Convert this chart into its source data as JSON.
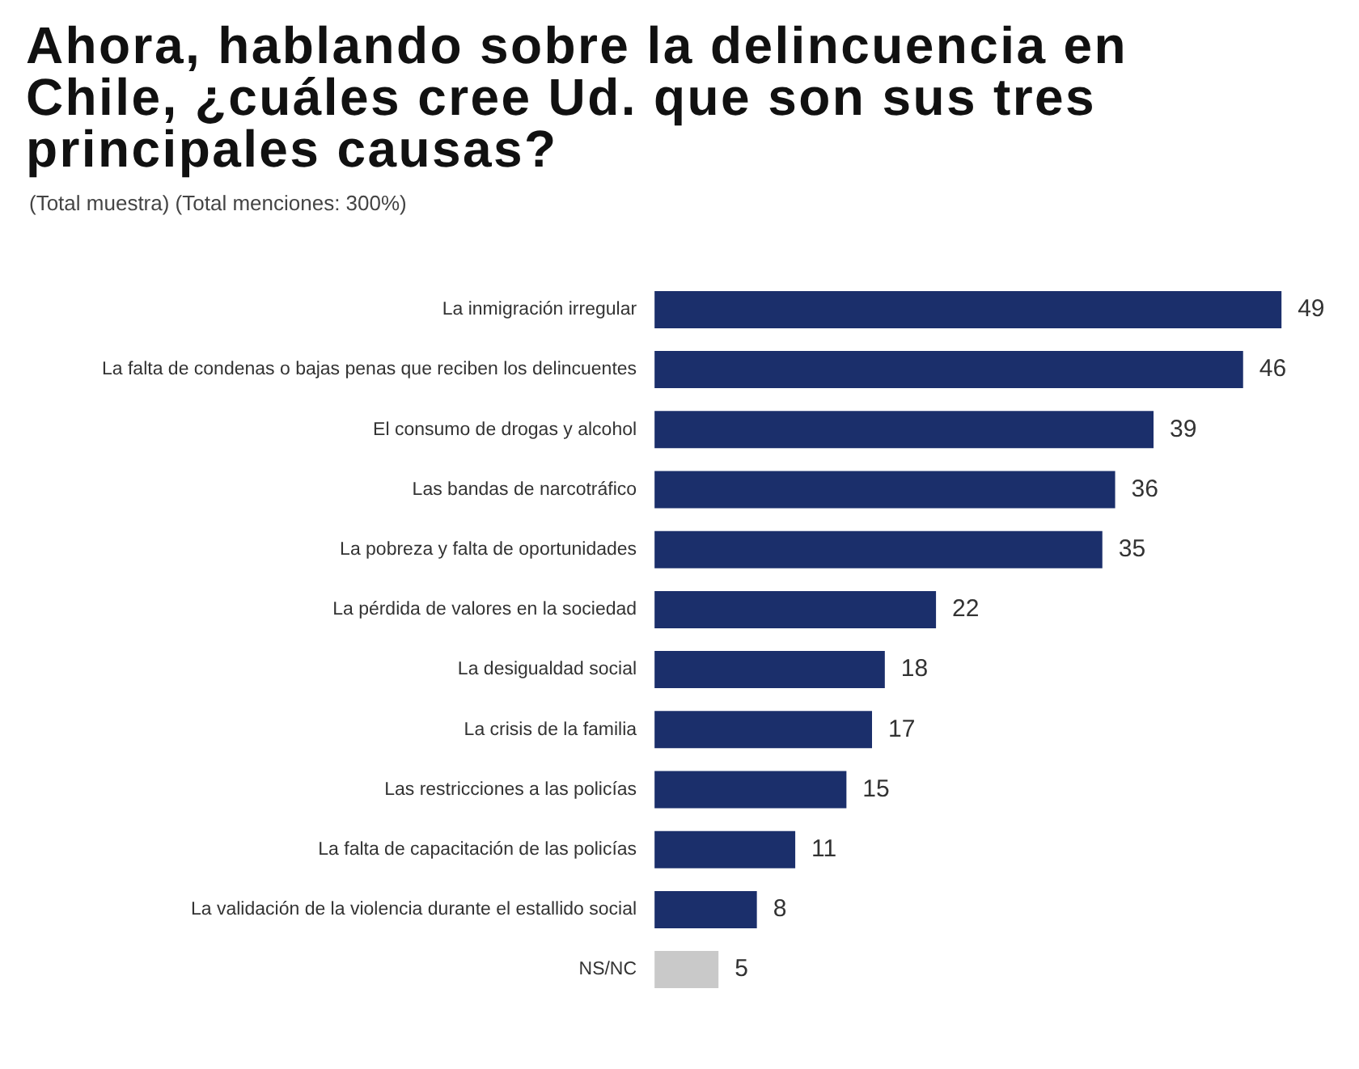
{
  "chart_data": {
    "type": "bar",
    "orientation": "horizontal",
    "title": "Ahora, hablando sobre la delincuencia en Chile, ¿cuáles cree Ud. que son sus tres principales causas?",
    "subtitle": "(Total muestra) (Total menciones: 300%)",
    "categories": [
      "La inmigración irregular",
      "La falta de condenas o bajas penas que reciben los delincuentes",
      "El consumo de drogas y alcohol",
      "Las bandas de narcotráfico",
      "La pobreza y falta de oportunidades",
      "La pérdida de valores en la sociedad",
      "La desigualdad social",
      "La crisis de la familia",
      "Las restricciones a las policías",
      "La falta de capacitación de las policías",
      "La validación de la violencia durante el estallido social",
      "NS/NC"
    ],
    "values": [
      49,
      46,
      39,
      36,
      35,
      22,
      18,
      17,
      15,
      11,
      8,
      5
    ],
    "colors": [
      "#1b2f6b",
      "#1b2f6b",
      "#1b2f6b",
      "#1b2f6b",
      "#1b2f6b",
      "#1b2f6b",
      "#1b2f6b",
      "#1b2f6b",
      "#1b2f6b",
      "#1b2f6b",
      "#1b2f6b",
      "#c9c9c9"
    ],
    "data_labels": true,
    "legend": false,
    "tick_labels": "y"
  }
}
